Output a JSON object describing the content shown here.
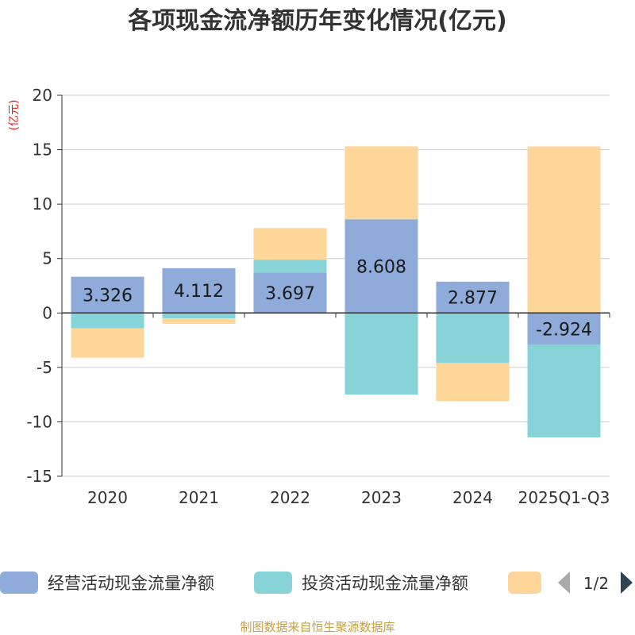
{
  "chart_data": {
    "type": "bar",
    "stacked": true,
    "title": "各项现金流净额历年变化情况(亿元)",
    "ylabel": "(亿元)",
    "ylim": [
      -15,
      20
    ],
    "yticks": [
      -15,
      -10,
      -5,
      0,
      5,
      10,
      15,
      20
    ],
    "grid": true,
    "categories": [
      "2020",
      "2021",
      "2022",
      "2023",
      "2024",
      "2025Q1-Q3"
    ],
    "series": [
      {
        "name": "经营活动现金流量净额",
        "color": "#8eabd9",
        "values": [
          3.326,
          4.112,
          3.697,
          8.608,
          2.877,
          -2.924
        ],
        "labels": [
          "3.326",
          "4.112",
          "3.697",
          "8.608",
          "2.877",
          "-2.924"
        ]
      },
      {
        "name": "投资活动现金流量净额",
        "color": "#86d4d8",
        "values": [
          -1.4,
          -0.5,
          1.2,
          -7.5,
          -4.6,
          -8.5
        ]
      },
      {
        "name": "",
        "color": "#ffd699",
        "values": [
          -2.7,
          -0.5,
          2.9,
          6.7,
          -3.5,
          15.3
        ]
      }
    ],
    "legend": {
      "position": "bottom",
      "page": "1/2"
    }
  },
  "source": "制图数据来自恒生聚源数据库",
  "colors": {
    "axis": "#333333",
    "grid": "#cccccc",
    "page_arrow_prev": "#aaaaaa",
    "page_arrow_next": "#2f4554"
  }
}
